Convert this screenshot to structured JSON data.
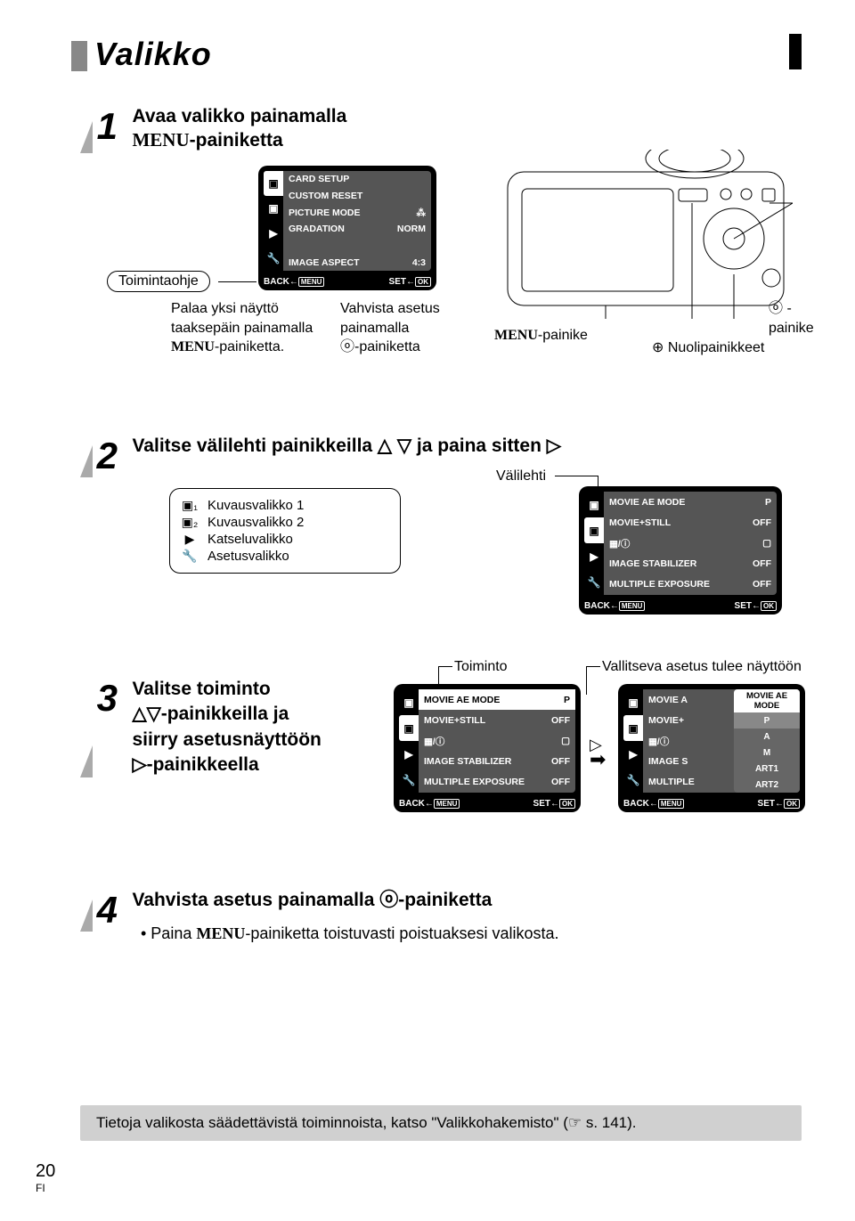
{
  "page": {
    "title": "Valikko",
    "number": "20",
    "lang": "FI"
  },
  "step1": {
    "number": "1",
    "title_line1": "Avaa valikko painamalla",
    "title_line2": "MENU-painiketta",
    "lcd": {
      "rows": [
        {
          "label": "CARD SETUP",
          "val": ""
        },
        {
          "label": "CUSTOM RESET",
          "val": ""
        },
        {
          "label": "PICTURE MODE",
          "val": "⁂"
        },
        {
          "label": "GRADATION",
          "val": "NORM"
        },
        {
          "label": "",
          "val": ""
        },
        {
          "label": "IMAGE ASPECT",
          "val": "4:3"
        }
      ],
      "footer_back": "BACK",
      "footer_back_btn": "MENU",
      "footer_set": "SET",
      "footer_set_btn": "OK"
    },
    "toimintaohje": "Toimintaohje",
    "caption_left_1": "Palaa yksi näyttö",
    "caption_left_2": "taaksepäin painamalla",
    "caption_left_3": "MENU-painiketta.",
    "caption_mid_1": "Vahvista asetus",
    "caption_mid_2": "painamalla",
    "caption_mid_3": "ⓞ-painiketta",
    "menu_painike": "MENU-painike",
    "ok_painike": "ⓞ -painike",
    "nuoli": "⊕ Nuolipainikkeet"
  },
  "step2": {
    "number": "2",
    "title": "Valitse välilehti painikkeilla △ ▽ ja paina sitten ▷",
    "valilehti": "Välilehti",
    "tips": [
      {
        "icon": "▣₁",
        "label": "Kuvausvalikko 1"
      },
      {
        "icon": "▣₂",
        "label": "Kuvausvalikko 2"
      },
      {
        "icon": "▶",
        "label": "Katseluvalikko"
      },
      {
        "icon": "🔧",
        "label": "Asetusvalikko"
      }
    ],
    "lcd": {
      "rows": [
        {
          "label": "MOVIE AE MODE",
          "val": "P"
        },
        {
          "label": "MOVIE+STILL",
          "val": "OFF"
        },
        {
          "label": "▦/ⓘ",
          "val": "▢"
        },
        {
          "label": "IMAGE STABILIZER",
          "val": "OFF"
        },
        {
          "label": "MULTIPLE EXPOSURE",
          "val": "OFF"
        }
      ],
      "footer_back": "BACK",
      "footer_back_btn": "MENU",
      "footer_set": "SET",
      "footer_set_btn": "OK"
    }
  },
  "step3": {
    "number": "3",
    "title_line1": "Valitse toiminto",
    "title_line2": "△▽-painikkeilla ja",
    "title_line3": "siirry asetusnäyttöön",
    "title_line4": "▷-painikkeella",
    "toiminto": "Toiminto",
    "vallitseva": "Vallitseva asetus tulee näyttöön",
    "lcd_a": {
      "rows": [
        {
          "label": "MOVIE AE MODE",
          "val": "P",
          "sel": true
        },
        {
          "label": "MOVIE+STILL",
          "val": "OFF"
        },
        {
          "label": "▦/ⓘ",
          "val": "▢"
        },
        {
          "label": "IMAGE STABILIZER",
          "val": "OFF"
        },
        {
          "label": "MULTIPLE EXPOSURE",
          "val": "OFF"
        }
      ],
      "footer_back": "BACK",
      "footer_back_btn": "MENU",
      "footer_set": "SET",
      "footer_set_btn": "OK"
    },
    "lcd_b": {
      "rows": [
        {
          "label": "MOVIE A",
          "val": ""
        },
        {
          "label": "MOVIE+",
          "val": ""
        },
        {
          "label": "▦/ⓘ",
          "val": ""
        },
        {
          "label": "IMAGE S",
          "val": ""
        },
        {
          "label": "MULTIPLE",
          "val": ""
        }
      ],
      "popup_header": "MOVIE AE MODE",
      "popup_rows": [
        "P",
        "A",
        "M",
        "ART1",
        "ART2"
      ],
      "footer_back": "BACK",
      "footer_back_btn": "MENU",
      "footer_set": "SET",
      "footer_set_btn": "OK"
    }
  },
  "step4": {
    "number": "4",
    "title": "Vahvista asetus painamalla ⓞ-painiketta",
    "bullet": "• Paina MENU-painiketta toistuvasti poistuaksesi valikosta."
  },
  "footer_note": "Tietoja valikosta säädettävistä toiminnoista, katso \"Valikkohakemisto\" (☞ s. 141)."
}
